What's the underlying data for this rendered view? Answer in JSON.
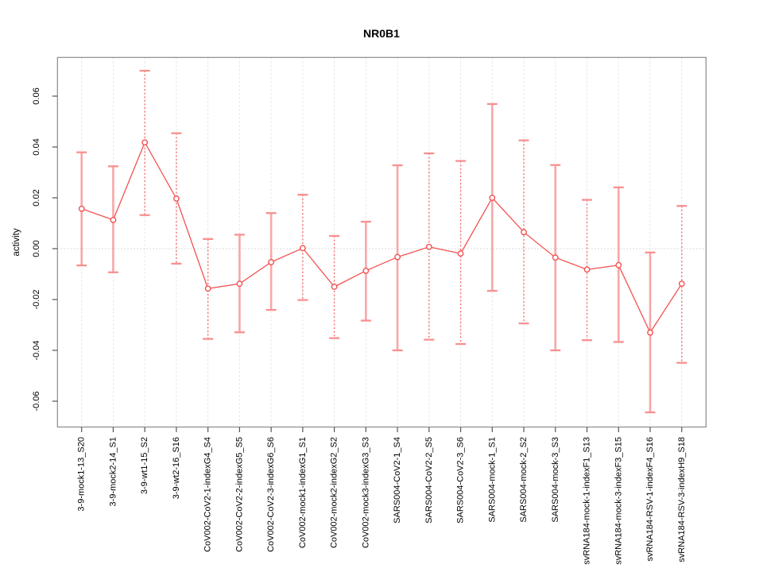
{
  "chart_data": {
    "type": "line",
    "title": "NR0B1",
    "xlabel": "",
    "ylabel": "activity",
    "categories": [
      "3-9-mock1-13_S20",
      "3-9-mock2-14_S1",
      "3-9-wt1-15_S2",
      "3-9-wt2-16_S16",
      "CoV002-CoV2-1-indexG4_S4",
      "CoV002-CoV2-2-indexG5_S5",
      "CoV002-CoV2-3-indexG6_S6",
      "CoV002-mock1-indexG1_S1",
      "CoV002-mock2-indexG2_S2",
      "CoV002-mock3-indexG3_S3",
      "SARS004-CoV2-1_S4",
      "SARS004-CoV2-2_S5",
      "SARS004-CoV2-3_S6",
      "SARS004-mock-1_S1",
      "SARS004-mock-2_S2",
      "SARS004-mock-3_S3",
      "svRNA184-mock-1-indexF1_S13",
      "svRNA184-mock-3-indexF3_S15",
      "svRNA184-RSV-1-indexF4_S16",
      "svRNA184-RSV-3-indexH9_S18"
    ],
    "values": [
      0.0157,
      0.0113,
      0.0418,
      0.0197,
      -0.0157,
      -0.0138,
      -0.0053,
      0.0002,
      -0.015,
      -0.0087,
      -0.0033,
      0.0007,
      -0.0019,
      0.02,
      0.0065,
      -0.0035,
      -0.0082,
      -0.0065,
      -0.033,
      -0.0138
    ],
    "error_high": [
      0.0379,
      0.0324,
      0.07,
      0.0454,
      0.0038,
      0.0055,
      0.014,
      0.0212,
      0.005,
      0.0106,
      0.0328,
      0.0375,
      0.0345,
      0.0569,
      0.0426,
      0.0329,
      0.0192,
      0.0241,
      -0.0015,
      0.0168
    ],
    "error_low": [
      -0.0066,
      -0.0093,
      0.0132,
      -0.0059,
      -0.0355,
      -0.0329,
      -0.0241,
      -0.0202,
      -0.0352,
      -0.0283,
      -0.04,
      -0.0358,
      -0.0375,
      -0.0166,
      -0.0294,
      -0.04,
      -0.036,
      -0.0367,
      -0.0644,
      -0.0449
    ],
    "error_bar_style": [
      "solid",
      "solid",
      "dotted",
      "dotted",
      "dotted",
      "solid",
      "solid",
      "dotted",
      "dotted",
      "solid",
      "solid",
      "dotted",
      "dotted",
      "solid",
      "dotted",
      "solid",
      "dotted",
      "solid",
      "solid",
      "dotted"
    ],
    "y_ticks": [
      0.06,
      0.04,
      0.02,
      0.0,
      -0.02,
      -0.04,
      -0.06
    ],
    "y_tick_labels": [
      "0.06",
      "0.04",
      "0.02",
      "0.00",
      "-0.02",
      "-0.04",
      "-0.06"
    ],
    "ylim": [
      -0.0702,
      0.0752
    ],
    "grid": "vertical-dashed-per-category, dotted-zero-line",
    "legend": "none",
    "marker": "open-circle",
    "colors": {
      "line": "#f35151",
      "point_stroke": "#f35151",
      "point_fill": "#ffffff",
      "errorbar_solid": "#f9a6a6",
      "errorbar_dotted": "#f87070",
      "errorbar_cap": "#f89090",
      "gridline": "#e4e4e4",
      "zero_line": "#d0d0d0",
      "axis_box": "#8a8a8a",
      "tick_mark": "#555555",
      "text": "#000000",
      "background": "#ffffff"
    }
  }
}
